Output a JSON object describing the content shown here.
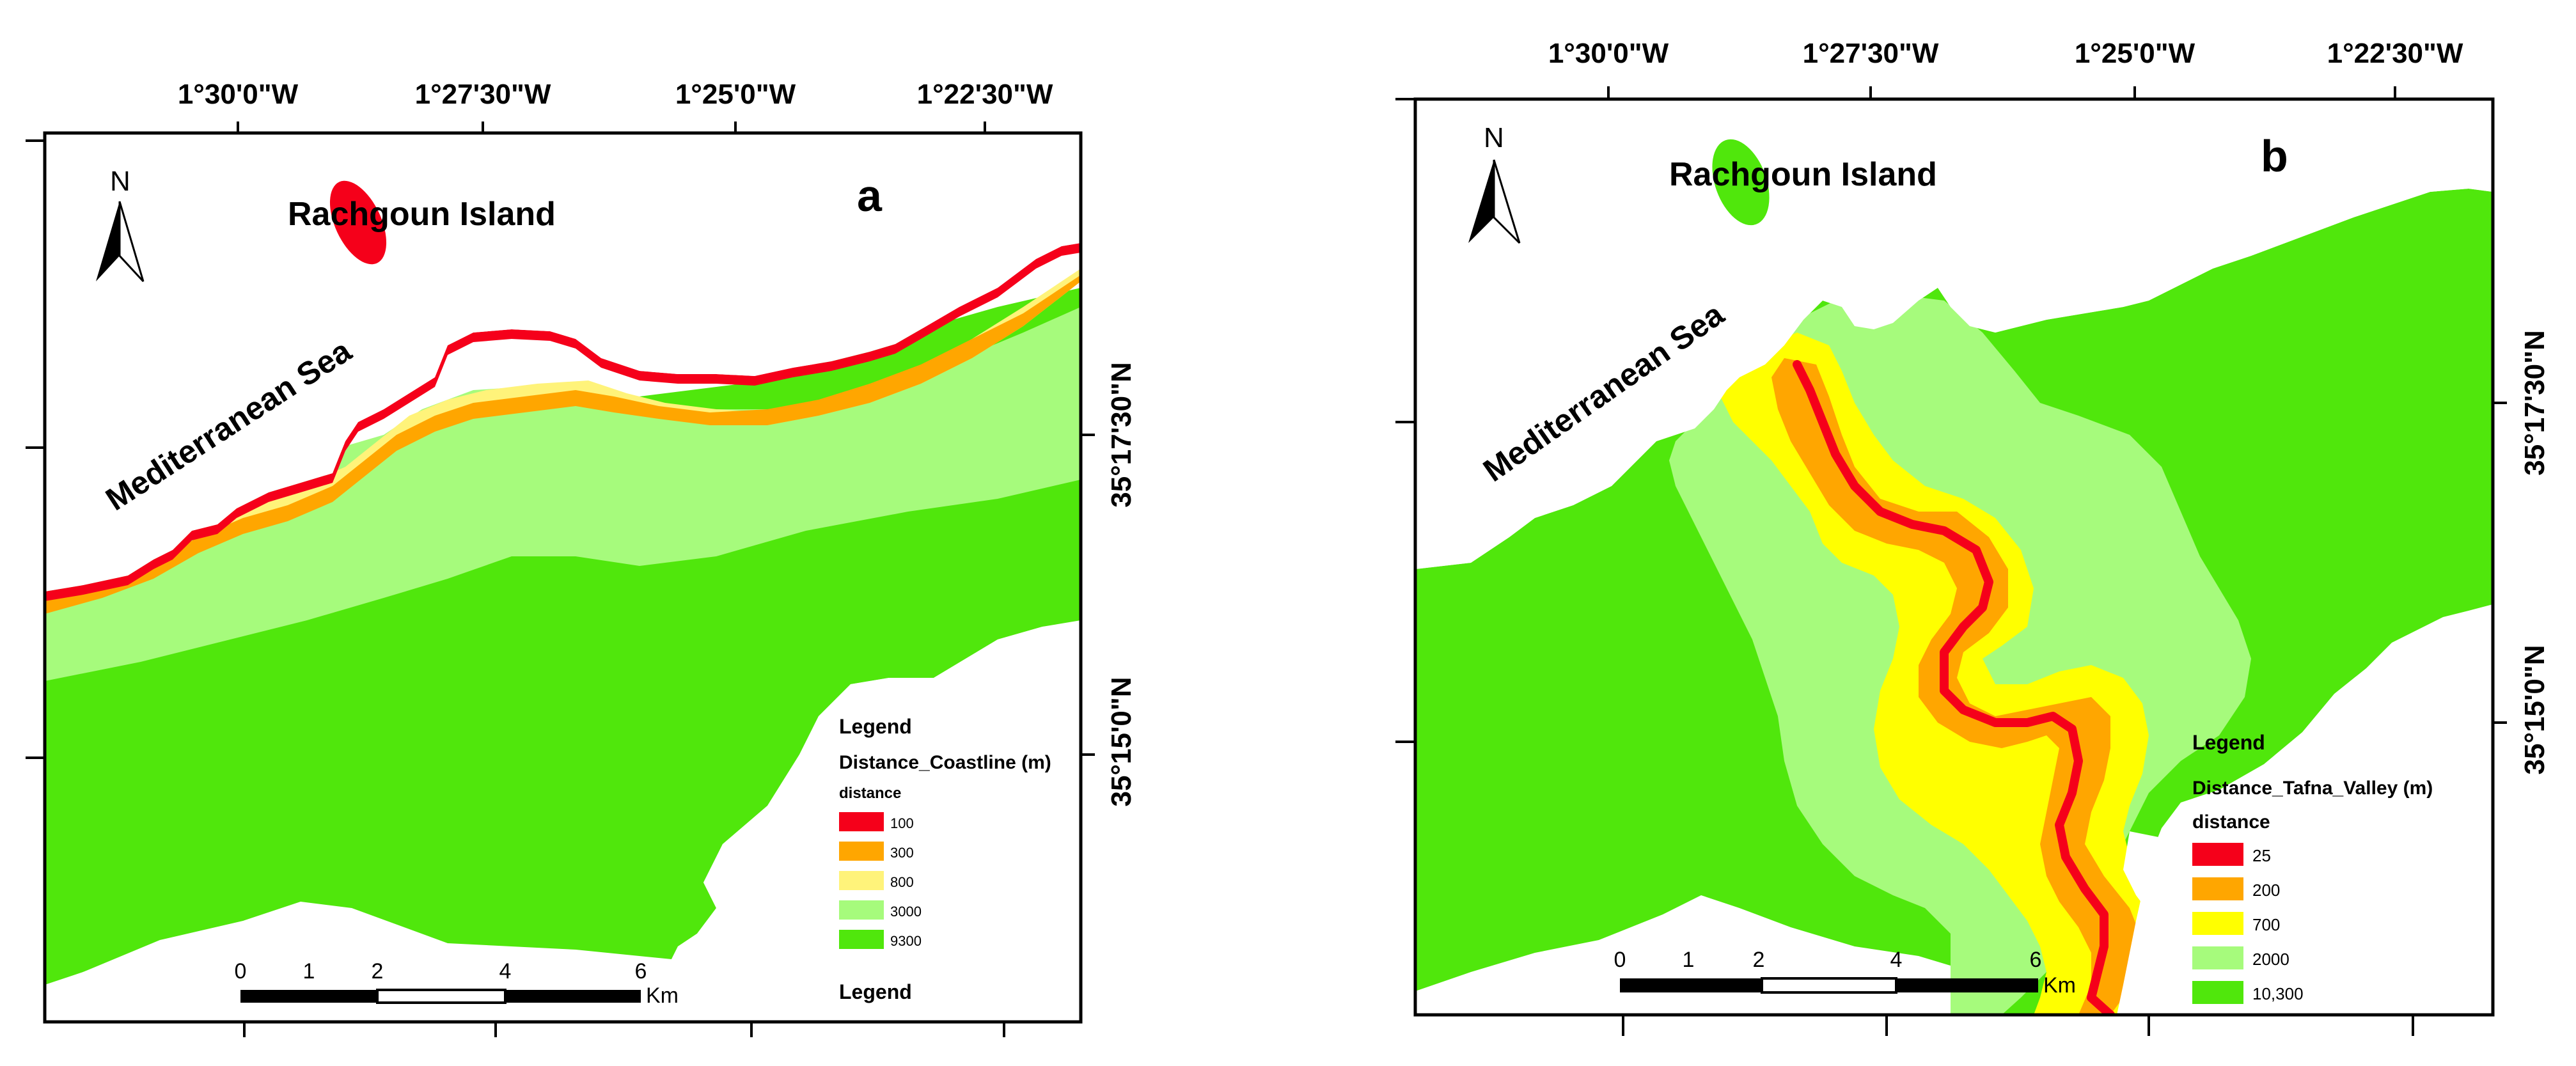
{
  "colors": {
    "frame": "#000000",
    "sea": "#ffffff"
  },
  "panels": [
    {
      "id": "a",
      "panel_label": "a",
      "island_label": "Rachgoun Island",
      "sea_label": "Mediterranean Sea",
      "north_label": "N",
      "lon_ticks": [
        "1°30'0\"W",
        "1°27'30\"W",
        "1°25'0\"W",
        "1°22'30\"W"
      ],
      "lat_ticks": [
        "35°17'30\"N",
        "35°15'0\"N"
      ],
      "legend": {
        "title": "Legend",
        "field": "Distance_Coastline (m)",
        "subtitle": "distance",
        "classes": [
          {
            "label": "100",
            "color": "#f5001a"
          },
          {
            "label": "300",
            "color": "#ffa600"
          },
          {
            "label": "800",
            "color": "#fff37a"
          },
          {
            "label": "3000",
            "color": "#a6fb7c"
          },
          {
            "label": "9300",
            "color": "#50e70c"
          }
        ],
        "extra_title": "Legend"
      },
      "scale_bar": {
        "labels": [
          "0",
          "1",
          "2",
          "4",
          "6"
        ],
        "unit": "Km"
      }
    },
    {
      "id": "b",
      "panel_label": "b",
      "island_label": "Rachgoun Island",
      "sea_label": "Mediterranean Sea",
      "north_label": "N",
      "lon_ticks": [
        "1°30'0\"W",
        "1°27'30\"W",
        "1°25'0\"W",
        "1°22'30\"W"
      ],
      "lat_ticks": [
        "35°17'30\"N",
        "35°15'0\"N"
      ],
      "legend": {
        "title": "Legend",
        "field": "Distance_Tafna_Valley (m)",
        "subtitle": "distance",
        "classes": [
          {
            "label": "25",
            "color": "#f5001a"
          },
          {
            "label": "200",
            "color": "#ffa600"
          },
          {
            "label": "700",
            "color": "#ffff00"
          },
          {
            "label": "2000",
            "color": "#a6fb7c"
          },
          {
            "label": "10,300",
            "color": "#50e70c"
          }
        ]
      },
      "scale_bar": {
        "labels": [
          "0",
          "1",
          "2",
          "4",
          "6"
        ],
        "unit": "Km"
      }
    }
  ]
}
